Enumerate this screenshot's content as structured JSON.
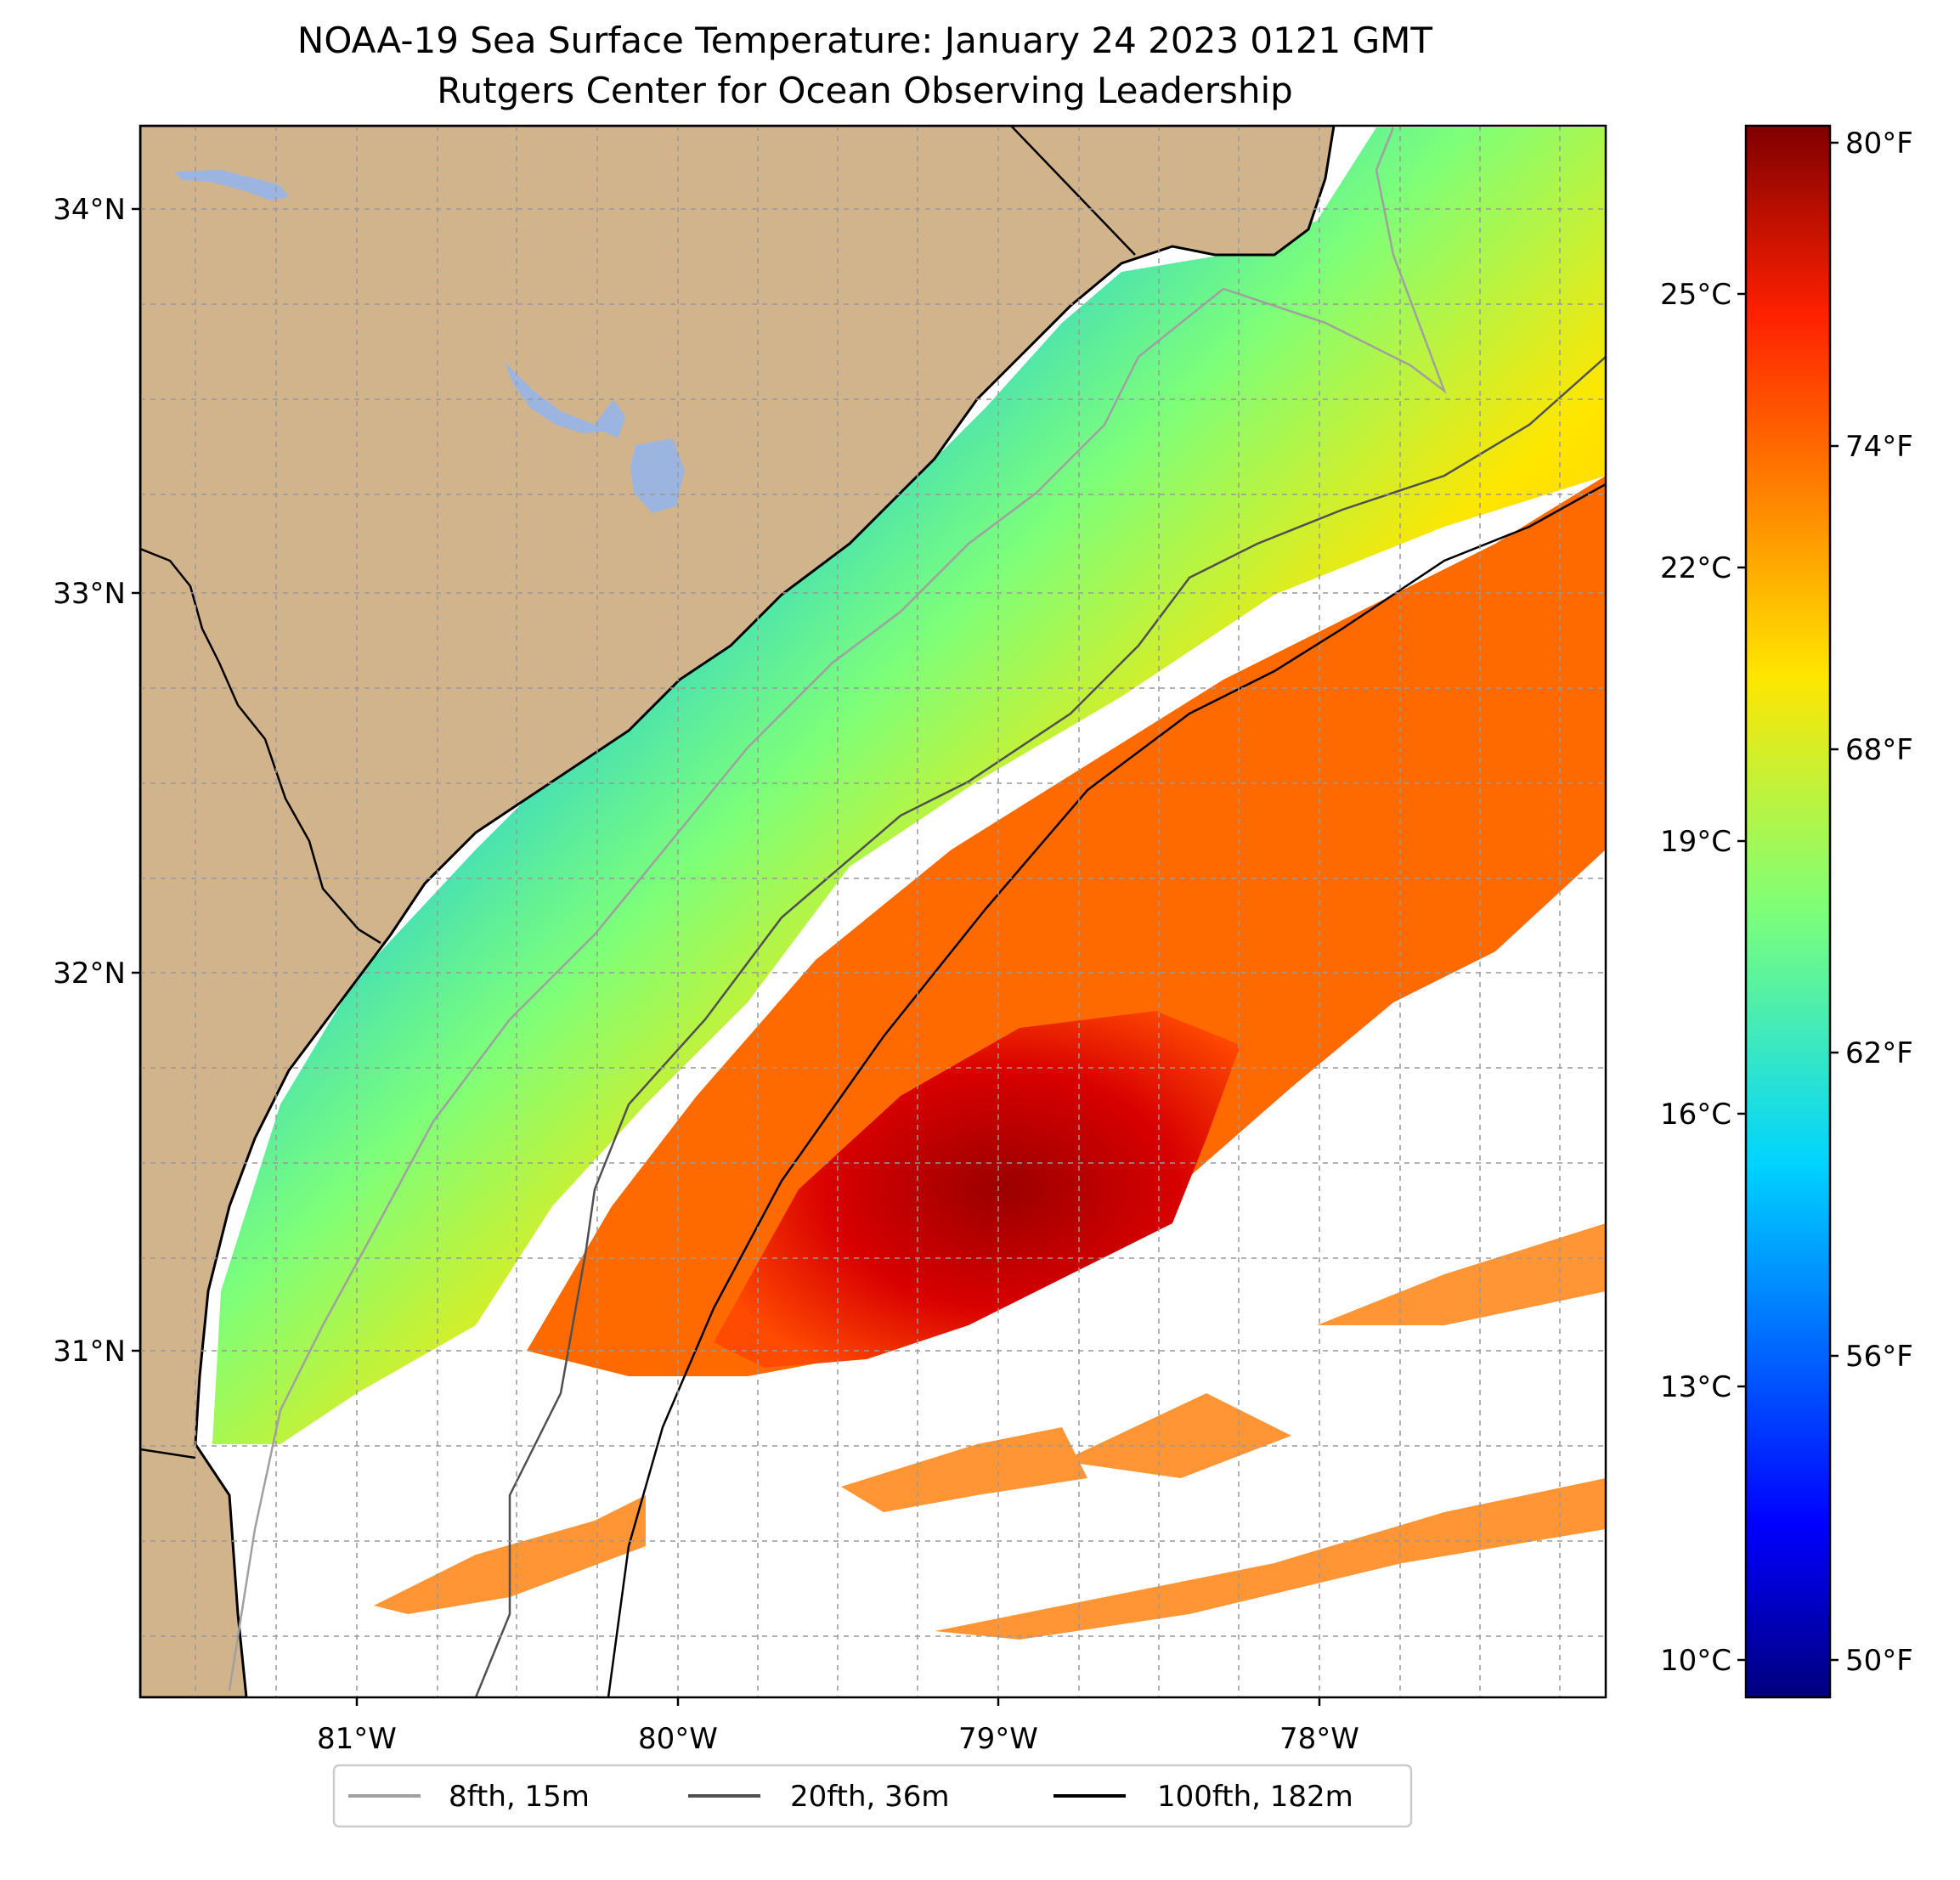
{
  "title": {
    "line1": "NOAA-19 Sea Surface Temperature: January 24 2023 0121 GMT",
    "line2": "Rutgers Center for Ocean Observing Leadership"
  },
  "map": {
    "lat_labels": [
      "34°N",
      "33°N",
      "32°N",
      "31°N"
    ],
    "lon_labels": [
      "81°W",
      "80°W",
      "79°W",
      "78°W"
    ],
    "colors": {
      "land": "#d2b48c",
      "lake": "#9bb5e0",
      "coast": "#000000",
      "grid": "#999999"
    }
  },
  "colorbar": {
    "celsius_labels": [
      "25°C",
      "22°C",
      "19°C",
      "16°C",
      "13°C",
      "10°C"
    ],
    "fahrenheit_labels": [
      "80°F",
      "74°F",
      "68°F",
      "62°F",
      "56°F",
      "50°F"
    ]
  },
  "legend": {
    "items": [
      {
        "label": "8fth, 15m",
        "color": "#a0a0a0"
      },
      {
        "label": "20fth, 36m",
        "color": "#505050"
      },
      {
        "label": "100fth, 182m",
        "color": "#000000"
      }
    ]
  }
}
